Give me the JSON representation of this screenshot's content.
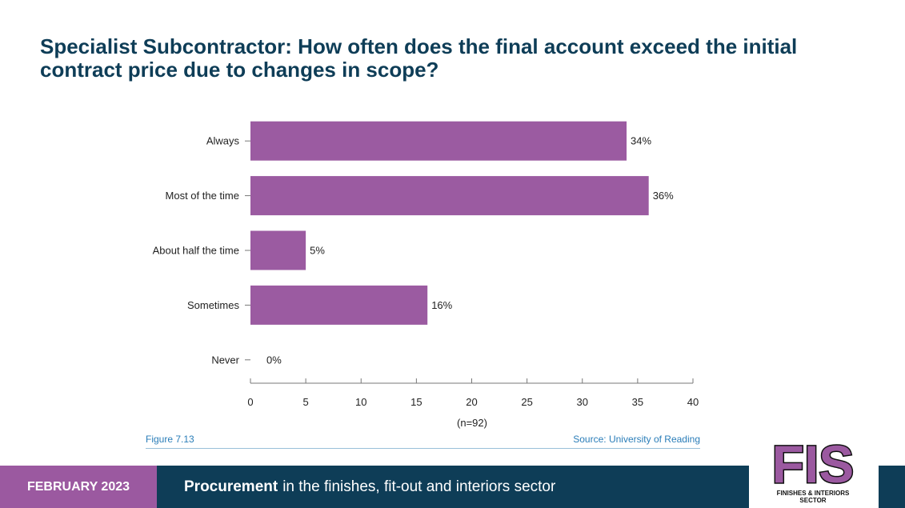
{
  "title": "Specialist Subcontractor: How often does the final account exceed the initial contract price due to changes in scope?",
  "chart_data": {
    "type": "bar",
    "orientation": "horizontal",
    "categories": [
      "Always",
      "Most of the time",
      "About half the time",
      "Sometimes",
      "Never"
    ],
    "values": [
      34,
      36,
      5,
      16,
      0
    ],
    "value_labels": [
      "34%",
      "36%",
      "5%",
      "16%",
      "0%"
    ],
    "xticks": [
      0,
      5,
      10,
      15,
      20,
      25,
      30,
      35,
      40
    ],
    "xlim": [
      0,
      40
    ],
    "xlabel": "(n=92)",
    "grid": false,
    "bar_color": "#9b5ba1"
  },
  "figure_label": "Figure 7.13",
  "source_label": "Source: University of Reading",
  "footer": {
    "date": "FEBRUARY 2023",
    "title_bold": "Procurement",
    "title_rest": "in the finishes, fit-out and interiors sector"
  },
  "logo": {
    "mark": "FIS",
    "text": "FINISHES & INTERIORS SECTOR"
  },
  "colors": {
    "title": "#0e3d57",
    "accent_purple": "#9b59a0",
    "navy": "#0e3d57",
    "caption": "#2a7db8"
  }
}
